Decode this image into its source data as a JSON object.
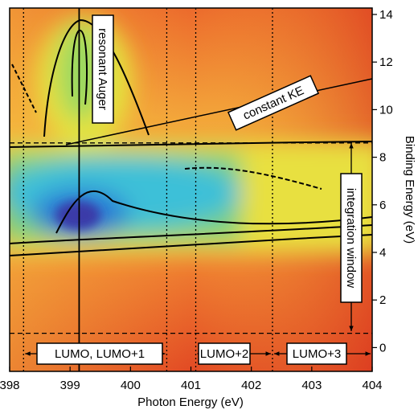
{
  "chart_data": {
    "type": "heatmap",
    "x_label": "Photon Energy (eV)",
    "y_label": "Binding Energy (eV)",
    "xlim": [
      398,
      404
    ],
    "ylim": [
      -1.0,
      14.27
    ],
    "xticks": [
      398,
      399,
      400,
      401,
      402,
      403,
      404
    ],
    "yticks": [
      0,
      2,
      4,
      6,
      8,
      10,
      12,
      14
    ],
    "y_axis_side": "right",
    "vlines": [
      398.23,
      400.6,
      401.08,
      402.35
    ],
    "hlines": [
      8.6,
      0.6
    ],
    "resonance": 399.15,
    "annotations": [
      "resonant Auger",
      "constant KE",
      "integration window",
      "LUMO, LUMO+1",
      "LUMO+2",
      "LUMO+3"
    ]
  }
}
